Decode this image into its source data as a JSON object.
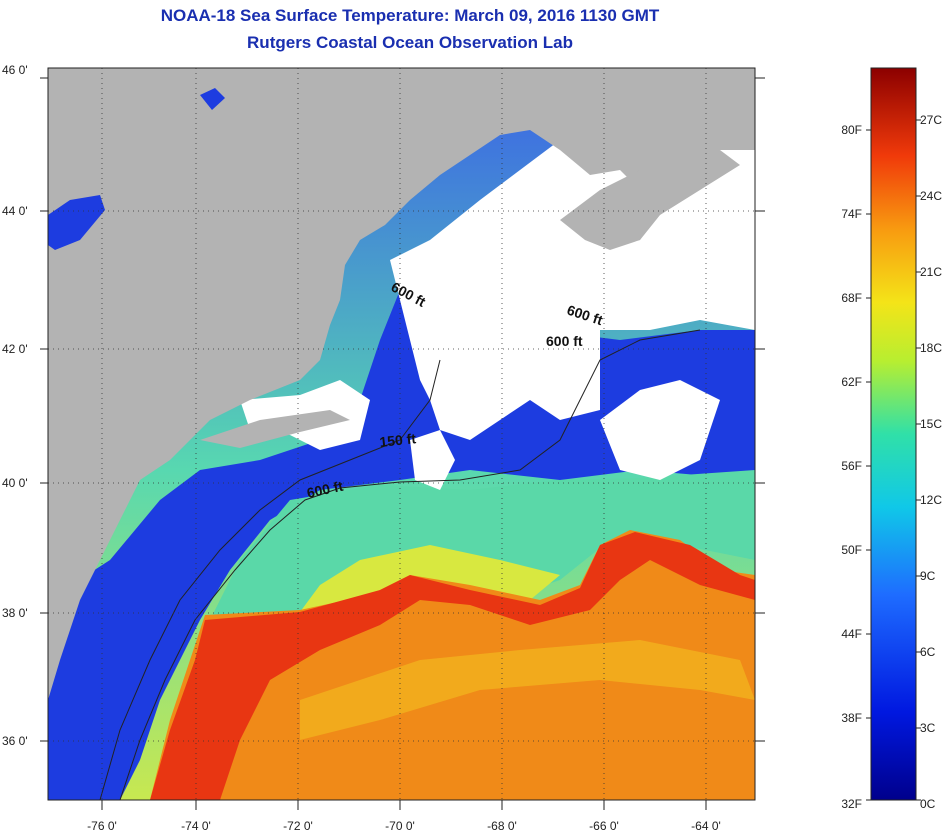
{
  "title": {
    "line1": "NOAA-18 Sea Surface Temperature:  March 09, 2016 1130 GMT",
    "line2": "Rutgers Coastal Ocean Observation Lab"
  },
  "map": {
    "lat_labels": [
      "46 0'",
      "44 0'",
      "42 0'",
      "40 0'",
      "38 0'",
      "36 0'"
    ],
    "lon_labels": [
      "-76 0'",
      "-74 0'",
      "-72 0'",
      "-70 0'",
      "-68 0'",
      "-66 0'",
      "-64 0'"
    ],
    "depth_labels": [
      "600 ft",
      "600 ft",
      "600 ft",
      "150 ft",
      "600 ft"
    ],
    "colors": {
      "land": "#b3b3b3",
      "cloud": "#ffffff",
      "cold": "#1530d8",
      "mid": "#3fd0a0",
      "warm": "#f07a12",
      "hot": "#e8200e"
    }
  },
  "colorbar": {
    "fahrenheit_labels": [
      "80F",
      "74F",
      "68F",
      "62F",
      "56F",
      "50F",
      "44F",
      "38F",
      "32F"
    ],
    "celsius_labels": [
      "27C",
      "24C",
      "21C",
      "18C",
      "15C",
      "12C",
      "9C",
      "6C",
      "3C",
      "0C"
    ]
  }
}
